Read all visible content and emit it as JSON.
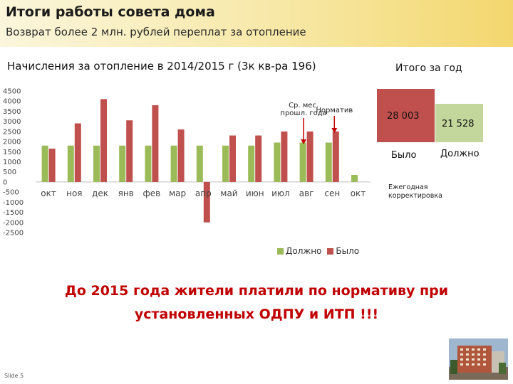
{
  "header": {
    "title": "Итоги работы совета дома",
    "subtitle": "Возврат более 2 млн. рублей переплат за отопление"
  },
  "chart_data": {
    "type": "bar",
    "title": "Начисления за отопление в 2014/2015 г (3к кв-ра 196)",
    "categories": [
      "окт",
      "ноя",
      "дек",
      "янв",
      "фев",
      "мар",
      "апр",
      "май",
      "июн",
      "июл",
      "авг",
      "сен",
      "окт"
    ],
    "series": [
      {
        "name": "Должно",
        "color": "#9bbb59",
        "values": [
          1800,
          1800,
          1800,
          1800,
          1800,
          1800,
          1800,
          1800,
          1800,
          1950,
          1950,
          1950,
          350
        ]
      },
      {
        "name": "Было",
        "color": "#c0504d",
        "values": [
          1650,
          2900,
          4100,
          3050,
          3800,
          2600,
          -2000,
          2300,
          2300,
          2500,
          2500,
          2500,
          0
        ]
      }
    ],
    "ylim": [
      -2500,
      4500
    ],
    "yticks": [
      -2500,
      -2000,
      -1500,
      -1000,
      -500,
      0,
      500,
      1000,
      1500,
      2000,
      2500,
      3000,
      3500,
      4000,
      4500
    ],
    "grid": false,
    "legend": "bottom",
    "annotations": [
      {
        "text": "Ср. мес.\nпрошл. года",
        "category_index": 10,
        "arrow_color": "#c00000"
      },
      {
        "text": "Норматив",
        "category_index": 11,
        "arrow_color": "#c00000"
      }
    ]
  },
  "totals": {
    "title": "Итого за год",
    "was_value": "28 003",
    "was_label": "Было",
    "should_value": "21 528",
    "should_label": "Должно",
    "note": "Ежегодная корректировка"
  },
  "main_text": {
    "line1": "До 2015 года жители платили по нормативу при",
    "line2": "установленных ОДПУ и ИТП !!!"
  },
  "footer": {
    "slide_label": "Slide 5"
  }
}
